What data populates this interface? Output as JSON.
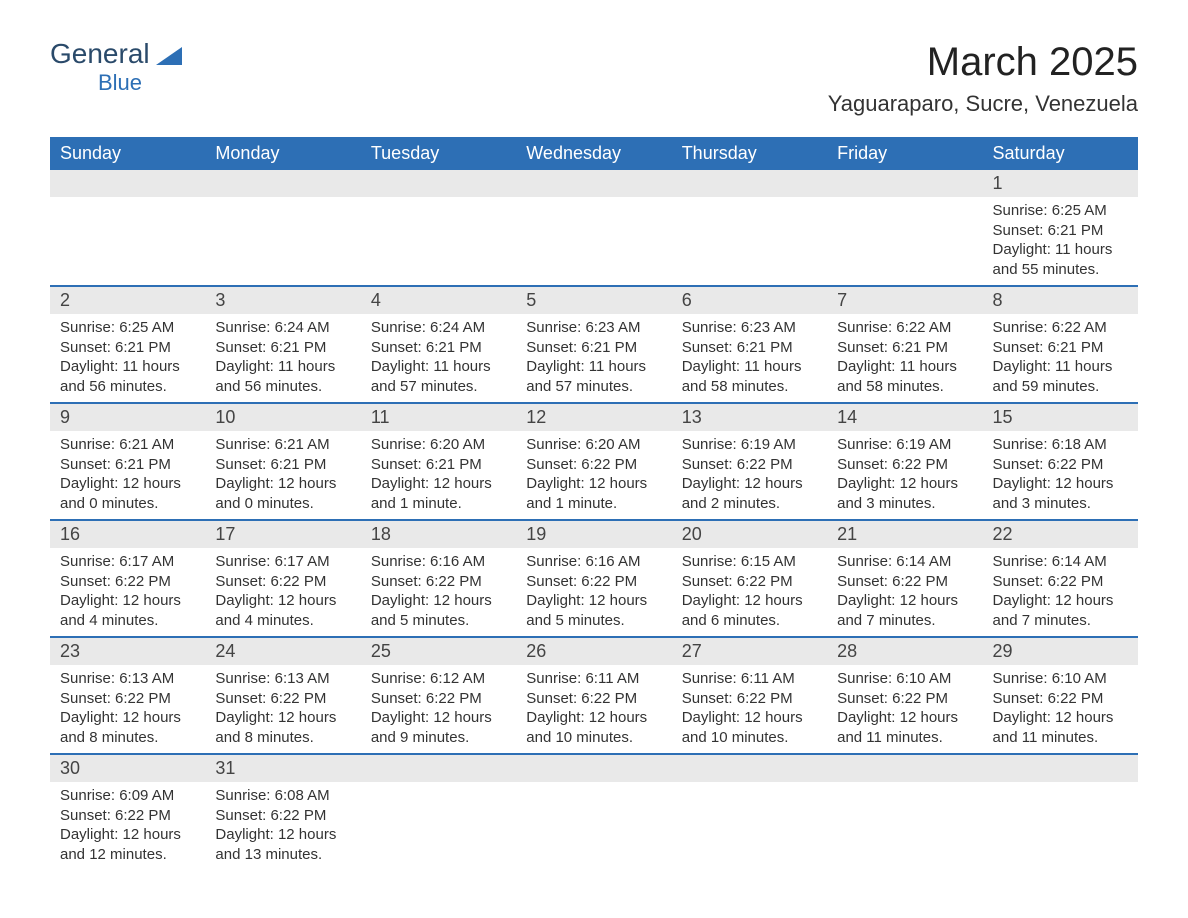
{
  "logo": {
    "line1": "General",
    "line2": "Blue"
  },
  "title": "March 2025",
  "location": "Yaguaraparo, Sucre, Venezuela",
  "colors": {
    "header_bg": "#2d6fb5",
    "stripe_bg": "#e9e9e9",
    "border": "#2d6fb5",
    "text": "#333333",
    "page_bg": "#ffffff"
  },
  "day_names": [
    "Sunday",
    "Monday",
    "Tuesday",
    "Wednesday",
    "Thursday",
    "Friday",
    "Saturday"
  ],
  "weeks": [
    [
      null,
      null,
      null,
      null,
      null,
      null,
      {
        "n": "1",
        "sr": "6:25 AM",
        "ss": "6:21 PM",
        "dl": "11 hours and 55 minutes."
      }
    ],
    [
      {
        "n": "2",
        "sr": "6:25 AM",
        "ss": "6:21 PM",
        "dl": "11 hours and 56 minutes."
      },
      {
        "n": "3",
        "sr": "6:24 AM",
        "ss": "6:21 PM",
        "dl": "11 hours and 56 minutes."
      },
      {
        "n": "4",
        "sr": "6:24 AM",
        "ss": "6:21 PM",
        "dl": "11 hours and 57 minutes."
      },
      {
        "n": "5",
        "sr": "6:23 AM",
        "ss": "6:21 PM",
        "dl": "11 hours and 57 minutes."
      },
      {
        "n": "6",
        "sr": "6:23 AM",
        "ss": "6:21 PM",
        "dl": "11 hours and 58 minutes."
      },
      {
        "n": "7",
        "sr": "6:22 AM",
        "ss": "6:21 PM",
        "dl": "11 hours and 58 minutes."
      },
      {
        "n": "8",
        "sr": "6:22 AM",
        "ss": "6:21 PM",
        "dl": "11 hours and 59 minutes."
      }
    ],
    [
      {
        "n": "9",
        "sr": "6:21 AM",
        "ss": "6:21 PM",
        "dl": "12 hours and 0 minutes."
      },
      {
        "n": "10",
        "sr": "6:21 AM",
        "ss": "6:21 PM",
        "dl": "12 hours and 0 minutes."
      },
      {
        "n": "11",
        "sr": "6:20 AM",
        "ss": "6:21 PM",
        "dl": "12 hours and 1 minute."
      },
      {
        "n": "12",
        "sr": "6:20 AM",
        "ss": "6:22 PM",
        "dl": "12 hours and 1 minute."
      },
      {
        "n": "13",
        "sr": "6:19 AM",
        "ss": "6:22 PM",
        "dl": "12 hours and 2 minutes."
      },
      {
        "n": "14",
        "sr": "6:19 AM",
        "ss": "6:22 PM",
        "dl": "12 hours and 3 minutes."
      },
      {
        "n": "15",
        "sr": "6:18 AM",
        "ss": "6:22 PM",
        "dl": "12 hours and 3 minutes."
      }
    ],
    [
      {
        "n": "16",
        "sr": "6:17 AM",
        "ss": "6:22 PM",
        "dl": "12 hours and 4 minutes."
      },
      {
        "n": "17",
        "sr": "6:17 AM",
        "ss": "6:22 PM",
        "dl": "12 hours and 4 minutes."
      },
      {
        "n": "18",
        "sr": "6:16 AM",
        "ss": "6:22 PM",
        "dl": "12 hours and 5 minutes."
      },
      {
        "n": "19",
        "sr": "6:16 AM",
        "ss": "6:22 PM",
        "dl": "12 hours and 5 minutes."
      },
      {
        "n": "20",
        "sr": "6:15 AM",
        "ss": "6:22 PM",
        "dl": "12 hours and 6 minutes."
      },
      {
        "n": "21",
        "sr": "6:14 AM",
        "ss": "6:22 PM",
        "dl": "12 hours and 7 minutes."
      },
      {
        "n": "22",
        "sr": "6:14 AM",
        "ss": "6:22 PM",
        "dl": "12 hours and 7 minutes."
      }
    ],
    [
      {
        "n": "23",
        "sr": "6:13 AM",
        "ss": "6:22 PM",
        "dl": "12 hours and 8 minutes."
      },
      {
        "n": "24",
        "sr": "6:13 AM",
        "ss": "6:22 PM",
        "dl": "12 hours and 8 minutes."
      },
      {
        "n": "25",
        "sr": "6:12 AM",
        "ss": "6:22 PM",
        "dl": "12 hours and 9 minutes."
      },
      {
        "n": "26",
        "sr": "6:11 AM",
        "ss": "6:22 PM",
        "dl": "12 hours and 10 minutes."
      },
      {
        "n": "27",
        "sr": "6:11 AM",
        "ss": "6:22 PM",
        "dl": "12 hours and 10 minutes."
      },
      {
        "n": "28",
        "sr": "6:10 AM",
        "ss": "6:22 PM",
        "dl": "12 hours and 11 minutes."
      },
      {
        "n": "29",
        "sr": "6:10 AM",
        "ss": "6:22 PM",
        "dl": "12 hours and 11 minutes."
      }
    ],
    [
      {
        "n": "30",
        "sr": "6:09 AM",
        "ss": "6:22 PM",
        "dl": "12 hours and 12 minutes."
      },
      {
        "n": "31",
        "sr": "6:08 AM",
        "ss": "6:22 PM",
        "dl": "12 hours and 13 minutes."
      },
      null,
      null,
      null,
      null,
      null
    ]
  ],
  "labels": {
    "sunrise": "Sunrise: ",
    "sunset": "Sunset: ",
    "daylight": "Daylight: "
  }
}
